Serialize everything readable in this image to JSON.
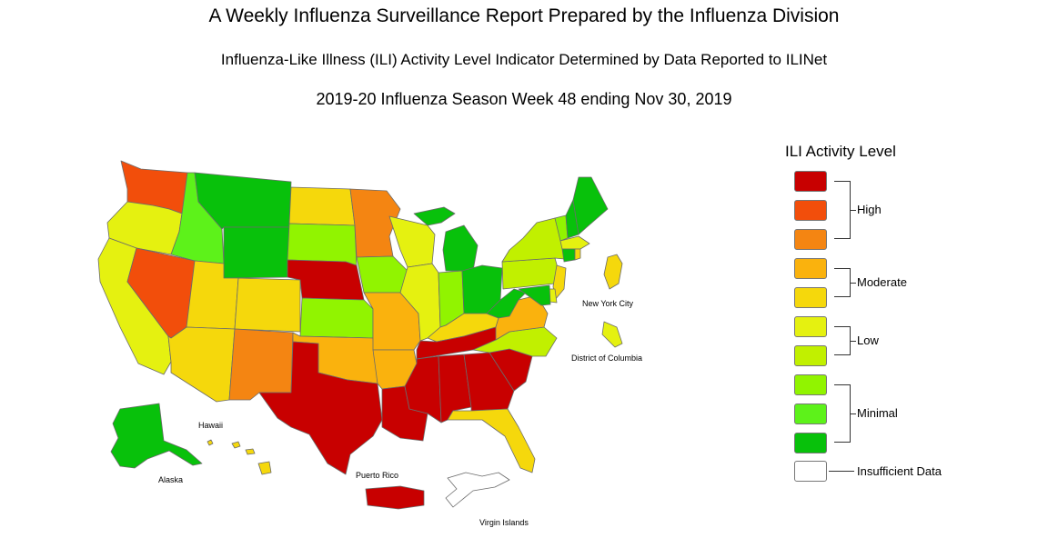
{
  "header": {
    "title": "A Weekly Influenza Surveillance Report Prepared by the Influenza Division",
    "subtitle": "Influenza-Like Illness (ILI) Activity Level Indicator Determined by Data Reported to ILINet",
    "season": "2019-20 Influenza Season Week 48 ending Nov 30, 2019"
  },
  "colors": {
    "level_10": "#c80000",
    "level_9": "#f24e0b",
    "level_8": "#f48512",
    "level_7": "#fab20d",
    "level_6": "#f5d80c",
    "level_5": "#e5f110",
    "level_4": "#c1f000",
    "level_3": "#91f400",
    "level_2": "#5df21a",
    "level_1": "#08c10b",
    "insufficient": "#ffffff"
  },
  "legend": {
    "title": "ILI Activity Level",
    "groups": [
      {
        "label": "High",
        "levels": [
          10,
          9,
          8
        ]
      },
      {
        "label": "Moderate",
        "levels": [
          7,
          6
        ]
      },
      {
        "label": "Low",
        "levels": [
          5,
          4
        ]
      },
      {
        "label": "Minimal",
        "levels": [
          3,
          2,
          1
        ]
      }
    ],
    "insufficient_label": "Insufficient Data"
  },
  "map_labels": {
    "nyc": "New York City",
    "dc": "District of Columbia",
    "hawaii": "Hawaii",
    "alaska": "Alaska",
    "puerto_rico": "Puerto Rico",
    "virgin_islands": "Virgin Islands"
  },
  "states": {
    "WA": 9,
    "OR": 5,
    "CA": 5,
    "NV": 9,
    "ID": 2,
    "MT": 1,
    "WY": 1,
    "UT": 6,
    "AZ": 6,
    "CO": 6,
    "NM": 8,
    "ND": 6,
    "SD": 3,
    "NE": 10,
    "KS": 3,
    "OK": 7,
    "TX": 10,
    "MN": 8,
    "IA": 3,
    "MO": 7,
    "AR": 7,
    "LA": 10,
    "WI": 5,
    "IL": 5,
    "MI": 1,
    "IN": 3,
    "OH": 1,
    "KY": 6,
    "TN": 10,
    "MS": 10,
    "AL": 10,
    "GA": 10,
    "FL": 6,
    "SC": 10,
    "NC": 4,
    "VA": 7,
    "WV": 1,
    "PA": 4,
    "NY": 4,
    "VT": 3,
    "NH": 1,
    "ME": 1,
    "MA": 5,
    "CT": 1,
    "RI": 6,
    "NJ": 6,
    "DE": 5,
    "MD": 1,
    "AK": 1,
    "HI": 6,
    "PR": 10,
    "VI": 0,
    "NYC": 6,
    "DC": 5
  }
}
